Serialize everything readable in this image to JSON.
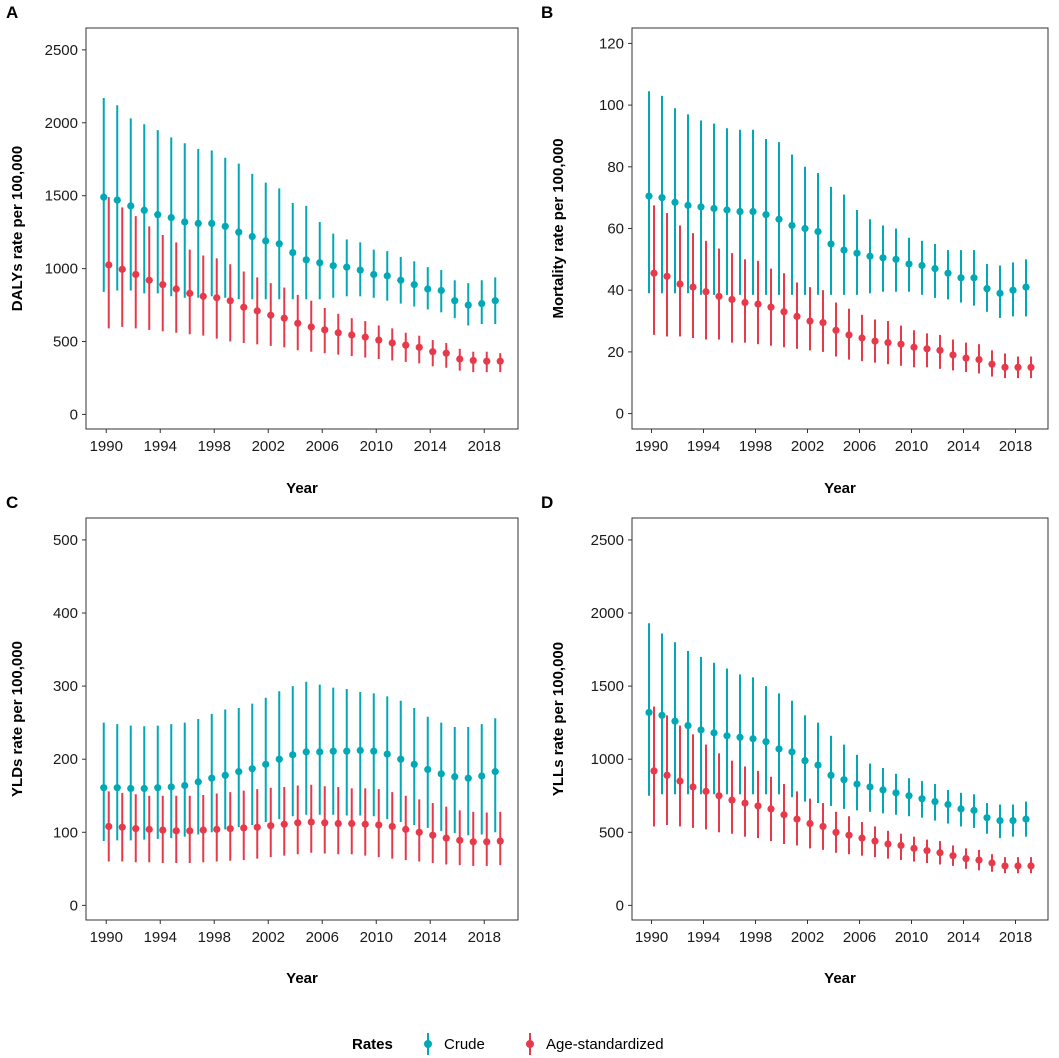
{
  "legend": {
    "title": "Rates",
    "items": [
      {
        "label": "Crude",
        "color": "#00A9B5"
      },
      {
        "label": "Age-standardized",
        "color": "#E8394A"
      }
    ]
  },
  "chart_data": [
    {
      "type": "scatter",
      "panel": "A",
      "xlabel": "Year",
      "ylabel": "DALYs rate per 100,000",
      "x": [
        1990,
        1991,
        1992,
        1993,
        1994,
        1995,
        1996,
        1997,
        1998,
        1999,
        2000,
        2001,
        2002,
        2003,
        2004,
        2005,
        2006,
        2007,
        2008,
        2009,
        2010,
        2011,
        2012,
        2013,
        2014,
        2015,
        2016,
        2017,
        2018,
        2019
      ],
      "xticks": [
        "1990",
        "1994",
        "1998",
        "2002",
        "2006",
        "2010",
        "2014",
        "2018"
      ],
      "ylim": [
        -100,
        2650
      ],
      "yticks": [
        "0",
        "500",
        "1000",
        "1500",
        "2000",
        "2500"
      ],
      "grid": false,
      "series": [
        {
          "name": "Crude",
          "values": [
            1490,
            1470,
            1430,
            1400,
            1370,
            1350,
            1320,
            1310,
            1310,
            1290,
            1250,
            1220,
            1190,
            1170,
            1110,
            1060,
            1040,
            1020,
            1010,
            990,
            960,
            950,
            920,
            890,
            860,
            850,
            780,
            750,
            760,
            780
          ],
          "lower": [
            840,
            850,
            850,
            830,
            830,
            810,
            800,
            800,
            810,
            800,
            790,
            790,
            790,
            790,
            790,
            790,
            790,
            800,
            810,
            810,
            800,
            780,
            760,
            740,
            720,
            700,
            660,
            610,
            620,
            620
          ],
          "upper": [
            2170,
            2120,
            2030,
            1990,
            1950,
            1900,
            1860,
            1820,
            1810,
            1760,
            1720,
            1650,
            1590,
            1550,
            1450,
            1430,
            1320,
            1240,
            1200,
            1180,
            1130,
            1120,
            1080,
            1050,
            1010,
            990,
            920,
            900,
            920,
            940
          ]
        },
        {
          "name": "Age-standardized",
          "values": [
            1025,
            995,
            960,
            920,
            890,
            860,
            830,
            810,
            800,
            780,
            735,
            710,
            680,
            660,
            625,
            600,
            580,
            560,
            545,
            530,
            510,
            490,
            475,
            460,
            430,
            420,
            380,
            370,
            365,
            365
          ],
          "lower": [
            590,
            600,
            590,
            580,
            570,
            560,
            550,
            540,
            520,
            500,
            490,
            480,
            470,
            460,
            440,
            430,
            420,
            410,
            400,
            390,
            380,
            370,
            360,
            350,
            330,
            320,
            300,
            290,
            290,
            290
          ],
          "upper": [
            1490,
            1420,
            1360,
            1290,
            1230,
            1180,
            1130,
            1090,
            1070,
            1030,
            980,
            940,
            900,
            870,
            820,
            780,
            730,
            690,
            660,
            640,
            610,
            590,
            560,
            540,
            510,
            490,
            450,
            430,
            430,
            420
          ]
        }
      ]
    },
    {
      "type": "scatter",
      "panel": "B",
      "xlabel": "Year",
      "ylabel": "Mortality rate per 100,000",
      "x": [
        1990,
        1991,
        1992,
        1993,
        1994,
        1995,
        1996,
        1997,
        1998,
        1999,
        2000,
        2001,
        2002,
        2003,
        2004,
        2005,
        2006,
        2007,
        2008,
        2009,
        2010,
        2011,
        2012,
        2013,
        2014,
        2015,
        2016,
        2017,
        2018,
        2019
      ],
      "xticks": [
        "1990",
        "1994",
        "1998",
        "2002",
        "2006",
        "2010",
        "2014",
        "2018"
      ],
      "ylim": [
        -5,
        125
      ],
      "yticks": [
        "0",
        "20",
        "40",
        "60",
        "80",
        "100",
        "120"
      ],
      "grid": false,
      "series": [
        {
          "name": "Crude",
          "values": [
            70.5,
            70,
            68.5,
            67.5,
            67,
            66.5,
            66,
            65.5,
            65.5,
            64.5,
            63,
            61,
            60,
            59,
            55,
            53,
            52,
            51,
            50.5,
            50,
            48.5,
            48,
            47,
            45.5,
            44,
            44,
            40.5,
            39,
            40,
            41
          ],
          "lower": [
            39,
            39,
            39,
            39,
            38.5,
            38.5,
            38.5,
            38.5,
            38.5,
            38.5,
            38.5,
            38.5,
            38.5,
            38.5,
            38.5,
            38.5,
            38.5,
            39,
            39.5,
            39.5,
            39.5,
            38.5,
            37.5,
            37,
            36,
            35,
            33,
            31,
            31.5,
            31.5
          ],
          "upper": [
            104.5,
            103,
            99,
            97,
            95,
            94,
            92.5,
            92,
            92,
            89,
            88,
            84,
            80,
            78,
            73.5,
            71,
            66,
            63,
            61,
            60,
            57,
            56,
            55,
            53,
            53,
            53,
            48.5,
            48,
            49,
            50
          ]
        },
        {
          "name": "Age-standardized",
          "values": [
            45.5,
            44.5,
            42,
            41,
            39.5,
            38,
            37,
            36,
            35.5,
            34.5,
            33,
            31.5,
            30,
            29.5,
            27,
            25.5,
            24.5,
            23.5,
            23,
            22.5,
            21.5,
            21,
            20.5,
            19,
            18,
            17.5,
            16,
            15,
            15,
            15
          ],
          "lower": [
            25.5,
            25,
            25,
            24.5,
            24,
            24,
            23,
            23,
            22.5,
            22,
            21.5,
            21,
            20.5,
            20,
            18.5,
            17.5,
            17,
            16.5,
            16,
            15.5,
            15,
            15,
            14.5,
            14,
            13.5,
            13,
            12,
            11.5,
            11.5,
            11.5
          ],
          "upper": [
            67.5,
            65,
            61,
            58.5,
            56,
            53.5,
            52,
            50,
            49.5,
            47,
            45.5,
            42.5,
            41,
            40,
            36,
            34,
            32,
            30.5,
            30,
            28.5,
            27,
            26,
            25.5,
            24,
            23,
            22.5,
            20.5,
            19.5,
            18.5,
            18.5
          ]
        }
      ]
    },
    {
      "type": "scatter",
      "panel": "C",
      "xlabel": "Year",
      "ylabel": "YLDs rate per 100,000",
      "x": [
        1990,
        1991,
        1992,
        1993,
        1994,
        1995,
        1996,
        1997,
        1998,
        1999,
        2000,
        2001,
        2002,
        2003,
        2004,
        2005,
        2006,
        2007,
        2008,
        2009,
        2010,
        2011,
        2012,
        2013,
        2014,
        2015,
        2016,
        2017,
        2018,
        2019
      ],
      "xticks": [
        "1990",
        "1994",
        "1998",
        "2002",
        "2006",
        "2010",
        "2014",
        "2018"
      ],
      "ylim": [
        -20,
        530
      ],
      "yticks": [
        "0",
        "100",
        "200",
        "300",
        "400",
        "500"
      ],
      "grid": false,
      "series": [
        {
          "name": "Crude",
          "values": [
            161,
            161,
            160,
            160,
            161,
            162,
            164,
            169,
            174,
            178,
            183,
            187,
            193,
            200,
            206,
            210,
            210,
            211,
            211,
            212,
            211,
            207,
            200,
            193,
            186,
            180,
            176,
            174,
            177,
            183
          ],
          "lower": [
            88,
            89,
            89,
            90,
            91,
            92,
            94,
            97,
            100,
            104,
            107,
            110,
            114,
            118,
            122,
            124,
            124,
            124,
            123,
            123,
            122,
            118,
            114,
            110,
            106,
            102,
            99,
            96,
            97,
            100
          ],
          "upper": [
            250,
            248,
            246,
            245,
            246,
            248,
            250,
            255,
            262,
            268,
            270,
            276,
            284,
            293,
            300,
            306,
            302,
            298,
            296,
            292,
            290,
            286,
            280,
            270,
            258,
            250,
            244,
            244,
            248,
            256
          ]
        },
        {
          "name": "Age-standardized",
          "values": [
            108,
            107,
            105,
            104,
            103,
            102,
            102,
            103,
            104,
            105,
            106,
            107,
            109,
            111,
            113,
            114,
            113,
            112,
            112,
            111,
            110,
            108,
            104,
            100,
            96,
            92,
            89,
            87,
            87,
            88
          ],
          "lower": [
            60,
            60,
            59,
            59,
            58,
            58,
            58,
            59,
            60,
            61,
            62,
            64,
            66,
            68,
            70,
            72,
            71,
            70,
            70,
            68,
            66,
            64,
            62,
            60,
            58,
            56,
            55,
            54,
            54,
            55
          ],
          "upper": [
            156,
            154,
            152,
            150,
            150,
            150,
            150,
            151,
            153,
            155,
            157,
            159,
            161,
            162,
            164,
            165,
            163,
            162,
            160,
            160,
            159,
            155,
            150,
            145,
            140,
            135,
            130,
            128,
            127,
            128
          ]
        }
      ]
    },
    {
      "type": "scatter",
      "panel": "D",
      "xlabel": "Year",
      "ylabel": "YLLs rate per 100,000",
      "x": [
        1990,
        1991,
        1992,
        1993,
        1994,
        1995,
        1996,
        1997,
        1998,
        1999,
        2000,
        2001,
        2002,
        2003,
        2004,
        2005,
        2006,
        2007,
        2008,
        2009,
        2010,
        2011,
        2012,
        2013,
        2014,
        2015,
        2016,
        2017,
        2018,
        2019
      ],
      "xticks": [
        "1990",
        "1994",
        "1998",
        "2002",
        "2006",
        "2010",
        "2014",
        "2018"
      ],
      "ylim": [
        -100,
        2650
      ],
      "yticks": [
        "0",
        "500",
        "1000",
        "1500",
        "2000",
        "2500"
      ],
      "grid": false,
      "series": [
        {
          "name": "Crude",
          "values": [
            1320,
            1300,
            1260,
            1230,
            1200,
            1180,
            1160,
            1150,
            1140,
            1120,
            1070,
            1050,
            990,
            960,
            890,
            860,
            830,
            810,
            790,
            770,
            750,
            730,
            710,
            690,
            660,
            650,
            600,
            580,
            580,
            590
          ],
          "lower": [
            750,
            760,
            760,
            760,
            760,
            760,
            760,
            760,
            760,
            760,
            760,
            740,
            710,
            700,
            680,
            660,
            650,
            640,
            630,
            620,
            610,
            600,
            580,
            560,
            540,
            530,
            490,
            460,
            470,
            470
          ],
          "upper": [
            1930,
            1860,
            1800,
            1740,
            1700,
            1660,
            1620,
            1580,
            1560,
            1500,
            1450,
            1400,
            1300,
            1250,
            1160,
            1100,
            1030,
            970,
            940,
            900,
            870,
            850,
            830,
            790,
            770,
            760,
            700,
            690,
            690,
            710
          ]
        },
        {
          "name": "Age-standardized",
          "values": [
            920,
            890,
            850,
            810,
            780,
            750,
            720,
            700,
            680,
            660,
            620,
            590,
            560,
            540,
            500,
            480,
            460,
            440,
            420,
            410,
            390,
            375,
            360,
            340,
            320,
            310,
            290,
            270,
            270,
            270
          ],
          "lower": [
            540,
            550,
            540,
            530,
            520,
            500,
            490,
            470,
            460,
            440,
            420,
            410,
            390,
            380,
            360,
            350,
            340,
            330,
            320,
            310,
            300,
            290,
            280,
            270,
            250,
            240,
            230,
            220,
            220,
            220
          ],
          "upper": [
            1360,
            1300,
            1230,
            1170,
            1100,
            1040,
            990,
            950,
            920,
            880,
            830,
            780,
            730,
            700,
            640,
            610,
            570,
            540,
            510,
            490,
            470,
            450,
            440,
            410,
            390,
            380,
            350,
            330,
            330,
            330
          ]
        }
      ]
    }
  ]
}
